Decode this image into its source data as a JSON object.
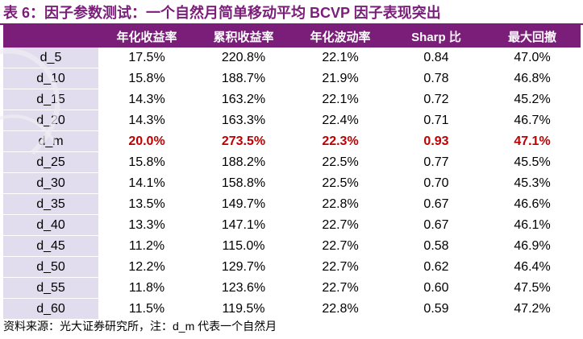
{
  "title": "表 6：因子参数测试：一个自然月简单移动平均 BCVP 因子表现突出",
  "columns": [
    "",
    "年化收益率",
    "累积收益率",
    "年化波动率",
    "Sharp 比",
    "最大回撤"
  ],
  "rows": [
    {
      "label": "d_5",
      "values": [
        "17.5%",
        "220.8%",
        "22.1%",
        "0.84",
        "47.0%"
      ]
    },
    {
      "label": "d_10",
      "values": [
        "15.8%",
        "188.7%",
        "21.9%",
        "0.78",
        "46.8%"
      ]
    },
    {
      "label": "d_15",
      "values": [
        "14.3%",
        "163.2%",
        "22.1%",
        "0.72",
        "45.2%"
      ]
    },
    {
      "label": "d_20",
      "values": [
        "14.3%",
        "163.3%",
        "22.4%",
        "0.71",
        "46.7%"
      ]
    },
    {
      "label": "d_m",
      "values": [
        "20.0%",
        "273.5%",
        "22.3%",
        "0.93",
        "47.1%"
      ]
    },
    {
      "label": "d_25",
      "values": [
        "15.8%",
        "188.2%",
        "22.5%",
        "0.77",
        "45.5%"
      ]
    },
    {
      "label": "d_30",
      "values": [
        "14.1%",
        "158.8%",
        "22.5%",
        "0.70",
        "45.3%"
      ]
    },
    {
      "label": "d_35",
      "values": [
        "13.5%",
        "149.7%",
        "22.8%",
        "0.67",
        "46.6%"
      ]
    },
    {
      "label": "d_40",
      "values": [
        "13.3%",
        "147.1%",
        "22.7%",
        "0.67",
        "46.1%"
      ]
    },
    {
      "label": "d_45",
      "values": [
        "11.2%",
        "115.0%",
        "22.7%",
        "0.58",
        "46.9%"
      ]
    },
    {
      "label": "d_50",
      "values": [
        "12.2%",
        "129.7%",
        "22.7%",
        "0.62",
        "46.4%"
      ]
    },
    {
      "label": "d_55",
      "values": [
        "11.8%",
        "123.6%",
        "22.7%",
        "0.60",
        "47.5%"
      ]
    },
    {
      "label": "d_60",
      "values": [
        "11.5%",
        "119.5%",
        "22.8%",
        "0.59",
        "47.2%"
      ]
    }
  ],
  "highlight_row": "d_m",
  "footer": "资料来源：光大证券研究所，注：d_m 代表一个自然月",
  "colors": {
    "header_bg": "#7B1E7A",
    "label_col_bg": "#E2DDEE",
    "highlight_text": "#C00000"
  }
}
